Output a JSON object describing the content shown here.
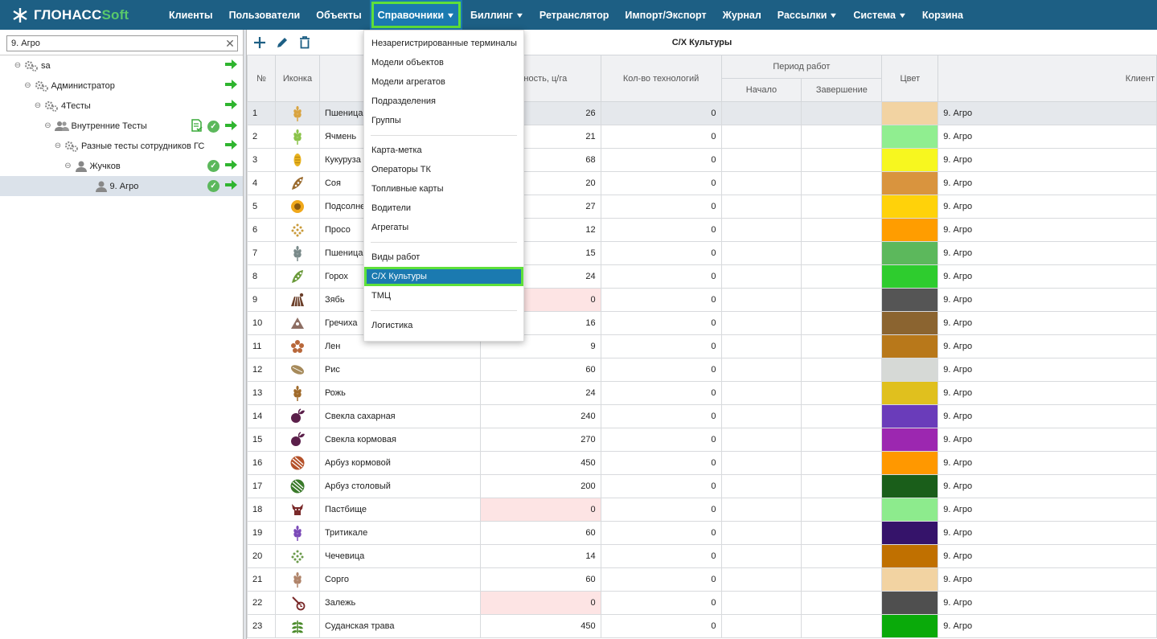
{
  "logo": {
    "text1": "ГЛОНАСС",
    "text2": "Soft"
  },
  "nav": [
    {
      "label": "Клиенты",
      "chev": false
    },
    {
      "label": "Пользователи",
      "chev": false
    },
    {
      "label": "Объекты",
      "chev": false
    },
    {
      "label": "Справочники",
      "chev": true,
      "active": true
    },
    {
      "label": "Биллинг",
      "chev": true
    },
    {
      "label": "Ретранслятор",
      "chev": false
    },
    {
      "label": "Импорт/Экспорт",
      "chev": false
    },
    {
      "label": "Журнал",
      "chev": false
    },
    {
      "label": "Рассылки",
      "chev": true
    },
    {
      "label": "Система",
      "chev": true
    },
    {
      "label": "Корзина",
      "chev": false
    }
  ],
  "search": {
    "value": "9. Агро"
  },
  "tree": [
    {
      "label": "sa",
      "indent": 0,
      "icon": "gears",
      "toggle": "⊖",
      "check": false,
      "doc": false
    },
    {
      "label": "Администратор",
      "indent": 1,
      "icon": "gears",
      "toggle": "⊖",
      "check": false,
      "doc": false
    },
    {
      "label": "4Тесты",
      "indent": 2,
      "icon": "gears",
      "toggle": "⊖",
      "check": false,
      "doc": false
    },
    {
      "label": "Внутренние Тесты",
      "indent": 3,
      "icon": "users",
      "toggle": "⊖",
      "check": true,
      "doc": true
    },
    {
      "label": "Разные тесты сотрудников ГС",
      "indent": 4,
      "icon": "gears",
      "toggle": "⊖",
      "check": false,
      "doc": false
    },
    {
      "label": "Жучков",
      "indent": 5,
      "icon": "user",
      "toggle": "⊖",
      "check": true,
      "doc": false
    },
    {
      "label": "9. Агро",
      "indent": 7,
      "icon": "user",
      "toggle": "",
      "check": true,
      "doc": false,
      "selected": true
    }
  ],
  "title": "С/Х Культуры",
  "headers": {
    "num": "№",
    "icon": "Иконка",
    "yield": "айность, ц/га",
    "tech": "Кол-во технологий",
    "period": "Период работ",
    "start": "Начало",
    "end": "Завершение",
    "color": "Цвет",
    "client": "Клиент"
  },
  "rows": [
    {
      "n": "1",
      "name": "Пшеница",
      "yield": "26",
      "tech": "0",
      "color": "#f2d3a2",
      "client": "9. Агро",
      "icon": "wheat",
      "ic": "#d9a441",
      "pink": false,
      "sel": true
    },
    {
      "n": "2",
      "name": "Ячмень",
      "yield": "21",
      "tech": "0",
      "color": "#90ee90",
      "client": "9. Агро",
      "icon": "wheat",
      "ic": "#8bc34a",
      "pink": false
    },
    {
      "n": "3",
      "name": "Кукуруза",
      "yield": "68",
      "tech": "0",
      "color": "#f7f71f",
      "client": "9. Агро",
      "icon": "corn",
      "ic": "#e8b21e",
      "pink": false
    },
    {
      "n": "4",
      "name": "Соя",
      "yield": "20",
      "tech": "0",
      "color": "#d9943e",
      "client": "9. Агро",
      "icon": "pod",
      "ic": "#9a6b2e",
      "pink": false
    },
    {
      "n": "5",
      "name": "Подсолнечник",
      "yield": "27",
      "tech": "0",
      "color": "#ffd20a",
      "client": "9. Агро",
      "icon": "sun",
      "ic": "#f0a81b",
      "pink": false
    },
    {
      "n": "6",
      "name": "Просо",
      "yield": "12",
      "tech": "0",
      "color": "#ff9d00",
      "client": "9. Агро",
      "icon": "dots",
      "ic": "#c99a3a",
      "pink": false
    },
    {
      "n": "7",
      "name": "Пшеница",
      "yield": "15",
      "tech": "0",
      "color": "#5cb85c",
      "client": "9. Агро",
      "icon": "wheat",
      "ic": "#7a8a8a",
      "pink": false
    },
    {
      "n": "8",
      "name": "Горох",
      "yield": "24",
      "tech": "0",
      "color": "#2ecc2e",
      "client": "9. Агро",
      "icon": "pod",
      "ic": "#6a9a3a",
      "pink": false
    },
    {
      "n": "9",
      "name": "Зябь",
      "yield": "0",
      "tech": "0",
      "color": "#555555",
      "client": "9. Агро",
      "icon": "field",
      "ic": "#6b3f2a",
      "pink": true
    },
    {
      "n": "10",
      "name": "Гречиха",
      "yield": "16",
      "tech": "0",
      "color": "#8b6430",
      "client": "9. Агро",
      "icon": "tri",
      "ic": "#8d6e63",
      "pink": false
    },
    {
      "n": "11",
      "name": "Лен",
      "yield": "9",
      "tech": "0",
      "color": "#b8781a",
      "client": "9. Агро",
      "icon": "flower",
      "ic": "#b8673a",
      "pink": false
    },
    {
      "n": "12",
      "name": "Рис",
      "yield": "60",
      "tech": "0",
      "color": "#d6d9d6",
      "client": "9. Агро",
      "icon": "seed",
      "ic": "#a68a5a",
      "pink": false
    },
    {
      "n": "13",
      "name": "Рожь",
      "yield": "24",
      "tech": "0",
      "color": "#e0c01e",
      "client": "9. Агро",
      "icon": "wheat",
      "ic": "#a06a2a",
      "pink": false
    },
    {
      "n": "14",
      "name": "Свекла сахарная",
      "yield": "240",
      "tech": "0",
      "color": "#6a3cba",
      "client": "9. Агро",
      "icon": "beet",
      "ic": "#5b1f4a",
      "pink": false
    },
    {
      "n": "15",
      "name": "Свекла кормовая",
      "yield": "270",
      "tech": "0",
      "color": "#9c27b0",
      "client": "9. Агро",
      "icon": "beet",
      "ic": "#5b1f4a",
      "pink": false
    },
    {
      "n": "16",
      "name": "Арбуз кормовой",
      "yield": "450",
      "tech": "0",
      "color": "#ff9800",
      "client": "9. Агро",
      "icon": "melon",
      "ic": "#b5522a",
      "pink": false
    },
    {
      "n": "17",
      "name": "Арбуз столовый",
      "yield": "200",
      "tech": "0",
      "color": "#1a5e1a",
      "client": "9. Агро",
      "icon": "melon",
      "ic": "#3a7a2a",
      "pink": false
    },
    {
      "n": "18",
      "name": "Пастбище",
      "yield": "0",
      "tech": "0",
      "color": "#8deb8d",
      "client": "9. Агро",
      "icon": "cow",
      "ic": "#7a2a2a",
      "pink": true
    },
    {
      "n": "19",
      "name": "Тритикале",
      "yield": "60",
      "tech": "0",
      "color": "#35136a",
      "client": "9. Агро",
      "icon": "wheat",
      "ic": "#7b4ab8",
      "pink": false
    },
    {
      "n": "20",
      "name": "Чечевица",
      "yield": "14",
      "tech": "0",
      "color": "#c07000",
      "client": "9. Агро",
      "icon": "dots",
      "ic": "#6a9a4a",
      "pink": false
    },
    {
      "n": "21",
      "name": "Сорго",
      "yield": "60",
      "tech": "0",
      "color": "#f2d3a2",
      "client": "9. Агро",
      "icon": "wheat",
      "ic": "#b0846a",
      "pink": false
    },
    {
      "n": "22",
      "name": "Залежь",
      "yield": "0",
      "tech": "0",
      "color": "#4f4f4f",
      "client": "9. Агро",
      "icon": "shovel",
      "ic": "#7a2a2a",
      "pink": true
    },
    {
      "n": "23",
      "name": "Суданская трава",
      "yield": "450",
      "tech": "0",
      "color": "#0aaa0a",
      "client": "9. Агро",
      "icon": "grass",
      "ic": "#4a8a2a",
      "pink": false
    }
  ],
  "menu": {
    "groups": [
      [
        "Незарегистрированные терминалы",
        "Модели объектов",
        "Модели агрегатов",
        "Подразделения",
        "Группы"
      ],
      [
        "Карта-метка",
        "Операторы ТК",
        "Топливные карты",
        "Водители",
        "Агрегаты"
      ],
      [
        "Виды работ",
        "С/Х Культуры",
        "ТМЦ"
      ],
      [
        "Логистика"
      ]
    ],
    "active": "С/Х Культуры"
  },
  "colors": {
    "header": "#1d5f84",
    "accent": "#5ee03a",
    "menu_active": "#1b7ab0",
    "check": "#5cb85c",
    "arrow": "#2fb52f"
  }
}
